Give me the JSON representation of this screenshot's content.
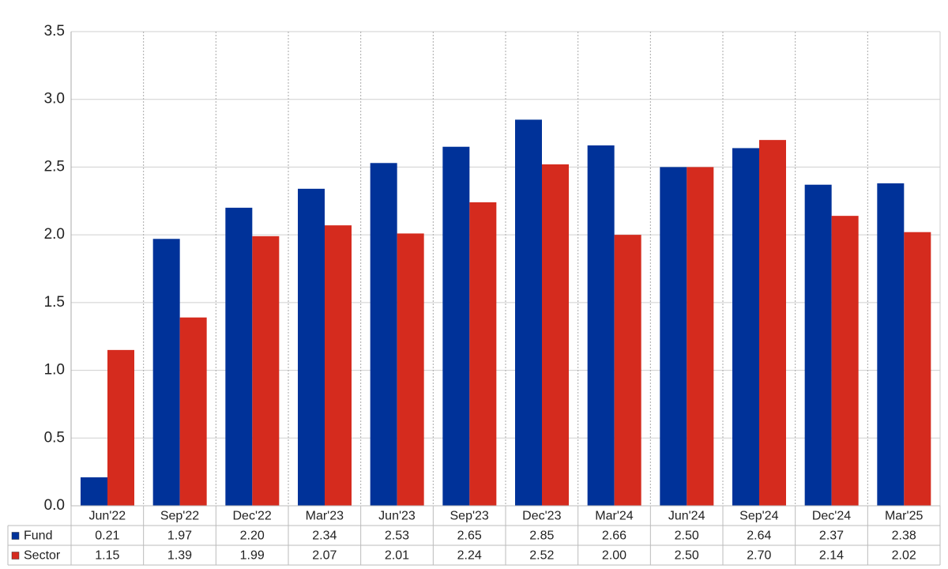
{
  "chart_data": {
    "type": "bar",
    "categories": [
      "Jun'22",
      "Sep'22",
      "Dec'22",
      "Mar'23",
      "Jun'23",
      "Sep'23",
      "Dec'23",
      "Mar'24",
      "Jun'24",
      "Sep'24",
      "Dec'24",
      "Mar'25"
    ],
    "series": [
      {
        "name": "Fund",
        "color": "#003299",
        "values": [
          0.21,
          1.97,
          2.2,
          2.34,
          2.53,
          2.65,
          2.85,
          2.66,
          2.5,
          2.64,
          2.37,
          2.38
        ],
        "value_labels": [
          "0.21",
          "1.97",
          "2.20",
          "2.34",
          "2.53",
          "2.65",
          "2.85",
          "2.66",
          "2.50",
          "2.64",
          "2.37",
          "2.38"
        ]
      },
      {
        "name": "Sector",
        "color": "#d52b1e",
        "values": [
          1.15,
          1.39,
          1.99,
          2.07,
          2.01,
          2.24,
          2.52,
          2.0,
          2.5,
          2.7,
          2.14,
          2.02
        ],
        "value_labels": [
          "1.15",
          "1.39",
          "1.99",
          "2.07",
          "2.01",
          "2.24",
          "2.52",
          "2.00",
          "2.50",
          "2.70",
          "2.14",
          "2.02"
        ]
      }
    ],
    "ylim": [
      0,
      3.5
    ],
    "yticks": [
      {
        "value": 0,
        "label": "0.0"
      },
      0.5,
      {
        "value": 1,
        "label": "1.0"
      },
      1.5,
      {
        "value": 2,
        "label": "2.0"
      },
      2.5,
      {
        "value": 3,
        "label": "3.0"
      },
      3.5
    ],
    "grid": true
  }
}
